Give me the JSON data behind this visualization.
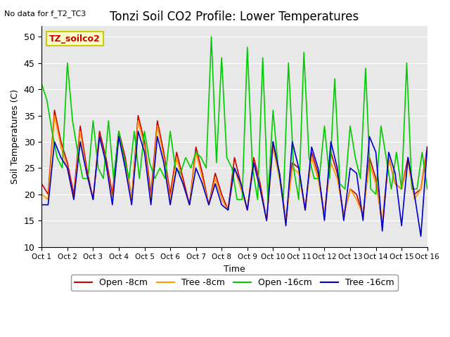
{
  "title": "Tonzi Soil CO2 Profile: Lower Temperatures",
  "subtitle": "No data for f_T2_TC3",
  "xlabel": "Time",
  "ylabel": "Soil Temperatures (C)",
  "ylim": [
    10,
    52
  ],
  "yticks": [
    10,
    15,
    20,
    25,
    30,
    35,
    40,
    45,
    50
  ],
  "xlim": [
    0,
    15
  ],
  "xtick_labels": [
    "Oct 1",
    "Oct 2",
    "Oct 3",
    "Oct 4",
    "Oct 5",
    "Oct 6",
    "Oct 7",
    "Oct 8",
    "Oct 9",
    "Oct 10",
    "Oct 11",
    "Oct 12",
    "Oct 13",
    "Oct 14",
    "Oct 15",
    "Oct 16"
  ],
  "bg_color": "#e8e8e8",
  "legend_box_color": "#ffffcc",
  "legend_box_edge": "#cccc00",
  "annotation_box_color": "#ffffcc",
  "annotation_box_edge": "#cccc00",
  "series": {
    "open_8cm": {
      "color": "#cc0000",
      "label": "Open -8cm",
      "x": [
        0,
        0.25,
        0.5,
        0.75,
        1.0,
        1.25,
        1.5,
        1.75,
        2.0,
        2.25,
        2.5,
        2.75,
        3.0,
        3.25,
        3.5,
        3.75,
        4.0,
        4.25,
        4.5,
        4.75,
        5.0,
        5.25,
        5.5,
        5.75,
        6.0,
        6.25,
        6.5,
        6.75,
        7.0,
        7.25,
        7.5,
        7.75,
        8.0,
        8.25,
        8.5,
        8.75,
        9.0,
        9.25,
        9.5,
        9.75,
        10.0,
        10.25,
        10.5,
        10.75,
        11.0,
        11.25,
        11.5,
        11.75,
        12.0,
        12.25,
        12.5,
        12.75,
        13.0,
        13.25,
        13.5,
        13.75,
        14.0,
        14.25,
        14.5,
        14.75,
        15.0
      ],
      "y": [
        22,
        20,
        36,
        30,
        26,
        20,
        33,
        25,
        19,
        32,
        27,
        20,
        32,
        27,
        19,
        35,
        30,
        20,
        34,
        28,
        20,
        28,
        23,
        18,
        29,
        24,
        18,
        24,
        20,
        17,
        27,
        22,
        17,
        27,
        22,
        15,
        30,
        24,
        15,
        26,
        25,
        17,
        28,
        24,
        16,
        28,
        24,
        16,
        21,
        20,
        16,
        27,
        23,
        14,
        27,
        22,
        21,
        27,
        20,
        21,
        29
      ]
    },
    "tree_8cm": {
      "color": "#ff9900",
      "label": "Tree -8cm",
      "x": [
        0,
        0.25,
        0.5,
        0.75,
        1.0,
        1.25,
        1.5,
        1.75,
        2.0,
        2.25,
        2.5,
        2.75,
        3.0,
        3.25,
        3.5,
        3.75,
        4.0,
        4.25,
        4.5,
        4.75,
        5.0,
        5.25,
        5.5,
        5.75,
        6.0,
        6.25,
        6.5,
        6.75,
        7.0,
        7.25,
        7.5,
        7.75,
        8.0,
        8.25,
        8.5,
        8.75,
        9.0,
        9.25,
        9.5,
        9.75,
        10.0,
        10.25,
        10.5,
        10.75,
        11.0,
        11.25,
        11.5,
        11.75,
        12.0,
        12.25,
        12.5,
        12.75,
        13.0,
        13.25,
        13.5,
        13.75,
        14.0,
        14.25,
        14.5,
        14.75,
        15.0
      ],
      "y": [
        20,
        19,
        35,
        29,
        25,
        19,
        32,
        24,
        19,
        31,
        26,
        19,
        31,
        26,
        19,
        34,
        29,
        19,
        33,
        27,
        19,
        27,
        22,
        18,
        28,
        23,
        18,
        23,
        19,
        17,
        25,
        21,
        17,
        26,
        21,
        15,
        29,
        23,
        15,
        25,
        24,
        17,
        27,
        23,
        16,
        26,
        23,
        16,
        21,
        19,
        16,
        26,
        22,
        15,
        27,
        22,
        21,
        26,
        19,
        21,
        28
      ]
    },
    "open_16cm": {
      "color": "#00cc00",
      "label": "Open -16cm",
      "x": [
        0,
        0.2,
        0.4,
        0.6,
        0.8,
        1.0,
        1.2,
        1.4,
        1.6,
        1.8,
        2.0,
        2.2,
        2.4,
        2.6,
        2.8,
        3.0,
        3.2,
        3.4,
        3.6,
        3.8,
        4.0,
        4.2,
        4.4,
        4.6,
        4.8,
        5.0,
        5.2,
        5.4,
        5.6,
        5.8,
        6.0,
        6.2,
        6.4,
        6.6,
        6.8,
        7.0,
        7.2,
        7.4,
        7.6,
        7.8,
        8.0,
        8.2,
        8.4,
        8.6,
        8.8,
        9.0,
        9.2,
        9.4,
        9.6,
        9.8,
        10.0,
        10.2,
        10.4,
        10.6,
        10.8,
        11.0,
        11.2,
        11.4,
        11.6,
        11.8,
        12.0,
        12.2,
        12.4,
        12.6,
        12.8,
        13.0,
        13.2,
        13.4,
        13.6,
        13.8,
        14.0,
        14.2,
        14.4,
        14.6,
        14.8,
        15.0
      ],
      "y": [
        41,
        38,
        32,
        27,
        25,
        45,
        34,
        28,
        23,
        23,
        34,
        25,
        23,
        34,
        23,
        32,
        27,
        23,
        32,
        23,
        32,
        26,
        23,
        25,
        23,
        32,
        25,
        24,
        27,
        25,
        28,
        27,
        25,
        50,
        26,
        46,
        27,
        25,
        19,
        19,
        48,
        25,
        19,
        46,
        19,
        36,
        25,
        19,
        45,
        25,
        19,
        47,
        27,
        23,
        23,
        33,
        23,
        42,
        22,
        21,
        33,
        27,
        23,
        44,
        21,
        20,
        33,
        27,
        21,
        28,
        21,
        45,
        21,
        21,
        28,
        21
      ]
    },
    "tree_16cm": {
      "color": "#0000cc",
      "label": "Tree -16cm",
      "x": [
        0,
        0.25,
        0.5,
        0.75,
        1.0,
        1.25,
        1.5,
        1.75,
        2.0,
        2.25,
        2.5,
        2.75,
        3.0,
        3.25,
        3.5,
        3.75,
        4.0,
        4.25,
        4.5,
        4.75,
        5.0,
        5.25,
        5.5,
        5.75,
        6.0,
        6.25,
        6.5,
        6.75,
        7.0,
        7.25,
        7.5,
        7.75,
        8.0,
        8.25,
        8.5,
        8.75,
        9.0,
        9.25,
        9.5,
        9.75,
        10.0,
        10.25,
        10.5,
        10.75,
        11.0,
        11.25,
        11.5,
        11.75,
        12.0,
        12.25,
        12.5,
        12.75,
        13.0,
        13.25,
        13.5,
        13.75,
        14.0,
        14.25,
        14.5,
        14.75,
        15.0
      ],
      "y": [
        18,
        18,
        30,
        27,
        25,
        19,
        30,
        24,
        19,
        31,
        26,
        18,
        31,
        25,
        18,
        32,
        28,
        18,
        31,
        26,
        18,
        25,
        22,
        18,
        25,
        22,
        18,
        22,
        18,
        17,
        25,
        22,
        17,
        26,
        21,
        15,
        30,
        24,
        14,
        30,
        25,
        17,
        29,
        25,
        15,
        30,
        25,
        15,
        25,
        24,
        15,
        31,
        28,
        13,
        28,
        24,
        14,
        27,
        20,
        12,
        29
      ]
    }
  }
}
